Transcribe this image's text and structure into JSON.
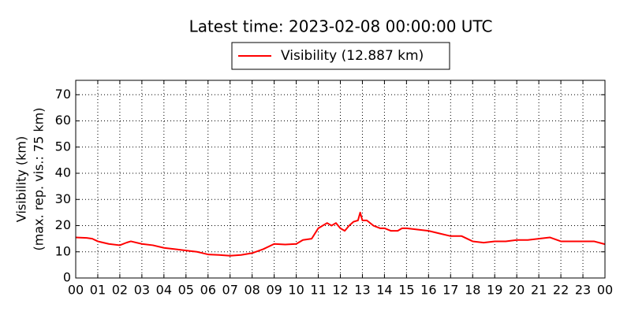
{
  "chart_data": {
    "type": "line",
    "title": "Latest time: 2023-02-08 00:00:00 UTC",
    "ylabel": [
      "Visibility (km)",
      "(max. rep. vis.: 75 km)"
    ],
    "series": [
      {
        "name": "Visibility (12.887 km)",
        "color": "#ff0000",
        "x": [
          0,
          0.5,
          0.75,
          1,
          1.5,
          2,
          2.3,
          2.5,
          3,
          3.5,
          4,
          4.5,
          5,
          5.5,
          6,
          6.5,
          7,
          7.5,
          8,
          8.5,
          9,
          9.5,
          10,
          10.3,
          10.7,
          11,
          11.2,
          11.4,
          11.6,
          11.8,
          12,
          12.2,
          12.4,
          12.6,
          12.8,
          12.9,
          13,
          13.2,
          13.5,
          13.8,
          14,
          14.3,
          14.6,
          14.8,
          15,
          15.5,
          16,
          16.5,
          17,
          17.3,
          17.5,
          18,
          18.5,
          19,
          19.5,
          20,
          20.5,
          21,
          21.5,
          22,
          22.5,
          23,
          23.5,
          24
        ],
        "values": [
          15.5,
          15.3,
          15,
          14,
          13,
          12.5,
          13.5,
          14,
          13,
          12.5,
          11.5,
          11,
          10.5,
          10,
          9,
          8.8,
          8.5,
          8.8,
          9.5,
          11,
          13,
          12.8,
          13,
          14.5,
          15,
          19,
          20,
          21,
          20,
          21,
          19,
          18,
          20,
          21.5,
          22,
          25,
          22,
          22,
          20,
          19,
          19,
          18,
          18,
          19,
          19,
          18.5,
          18,
          17,
          16,
          16,
          16,
          14,
          13.5,
          14,
          14,
          14.5,
          14.5,
          15,
          15.5,
          14,
          14,
          14,
          14,
          12.9
        ]
      }
    ],
    "xlim": [
      0,
      24
    ],
    "xticks": [
      {
        "value": 0,
        "label": "00"
      },
      {
        "value": 1,
        "label": "01"
      },
      {
        "value": 2,
        "label": "02"
      },
      {
        "value": 3,
        "label": "03"
      },
      {
        "value": 4,
        "label": "04"
      },
      {
        "value": 5,
        "label": "05"
      },
      {
        "value": 6,
        "label": "06"
      },
      {
        "value": 7,
        "label": "07"
      },
      {
        "value": 8,
        "label": "08"
      },
      {
        "value": 9,
        "label": "09"
      },
      {
        "value": 10,
        "label": "10"
      },
      {
        "value": 11,
        "label": "11"
      },
      {
        "value": 12,
        "label": "12"
      },
      {
        "value": 13,
        "label": "13"
      },
      {
        "value": 14,
        "label": "14"
      },
      {
        "value": 15,
        "label": "15"
      },
      {
        "value": 16,
        "label": "16"
      },
      {
        "value": 17,
        "label": "17"
      },
      {
        "value": 18,
        "label": "18"
      },
      {
        "value": 19,
        "label": "19"
      },
      {
        "value": 20,
        "label": "20"
      },
      {
        "value": 21,
        "label": "21"
      },
      {
        "value": 22,
        "label": "22"
      },
      {
        "value": 23,
        "label": "23"
      },
      {
        "value": 24,
        "label": "00"
      }
    ],
    "ylim": [
      0,
      75.5
    ],
    "yticks": [
      0,
      10,
      20,
      30,
      40,
      50,
      60,
      70
    ],
    "grid": true,
    "legend": "top"
  }
}
